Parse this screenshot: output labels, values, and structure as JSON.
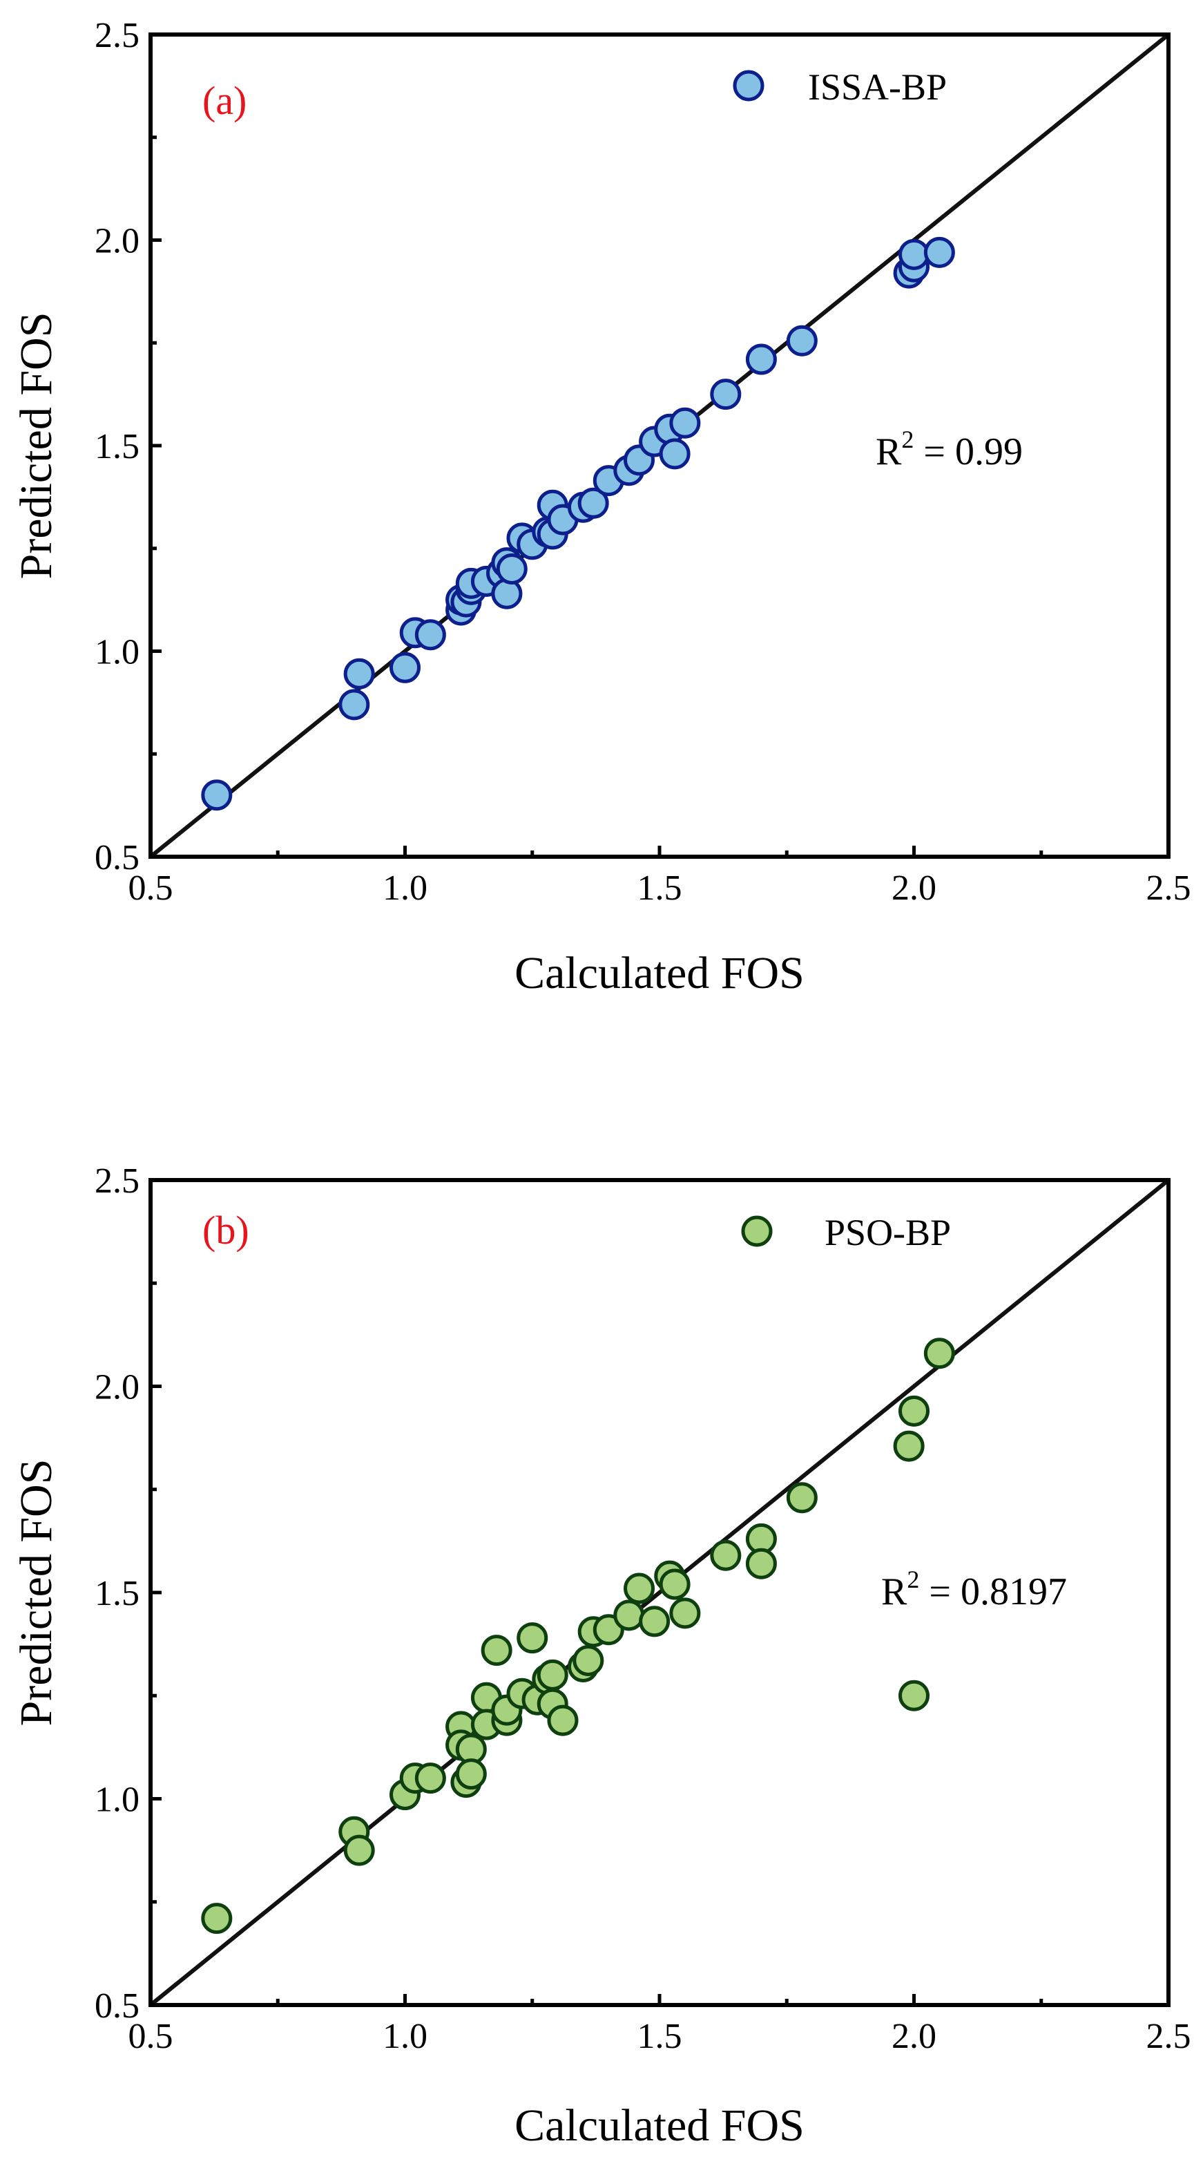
{
  "chart_data": [
    {
      "type": "scatter",
      "panel_label": "(a)",
      "xlabel": "Calculated FOS",
      "ylabel": "Predicted FOS",
      "xlim": [
        0.5,
        2.5
      ],
      "ylim": [
        0.5,
        2.5
      ],
      "xticks": [
        "0.5",
        "1.0",
        "1.5",
        "2.0",
        "2.5"
      ],
      "yticks": [
        "0.5",
        "1.0",
        "1.5",
        "2.0",
        "2.5"
      ],
      "legend": {
        "label": "ISSA-BP",
        "placement": "top-right"
      },
      "annotation": {
        "base": "R",
        "sup": "2",
        "rest": " = 0.99"
      },
      "reference_line": "y = x",
      "colors": {
        "fill": "#85c1e5",
        "edge": "#0c1f8c",
        "panel_label": "#e8141b"
      },
      "points": [
        [
          0.63,
          0.65
        ],
        [
          0.9,
          0.87
        ],
        [
          0.91,
          0.945
        ],
        [
          1.0,
          0.96
        ],
        [
          1.02,
          1.045
        ],
        [
          1.05,
          1.04
        ],
        [
          1.11,
          1.1
        ],
        [
          1.11,
          1.125
        ],
        [
          1.12,
          1.12
        ],
        [
          1.13,
          1.15
        ],
        [
          1.13,
          1.165
        ],
        [
          1.16,
          1.17
        ],
        [
          1.19,
          1.19
        ],
        [
          1.2,
          1.14
        ],
        [
          1.2,
          1.215
        ],
        [
          1.21,
          1.2
        ],
        [
          1.23,
          1.275
        ],
        [
          1.25,
          1.26
        ],
        [
          1.28,
          1.29
        ],
        [
          1.29,
          1.285
        ],
        [
          1.29,
          1.355
        ],
        [
          1.31,
          1.32
        ],
        [
          1.35,
          1.35
        ],
        [
          1.37,
          1.36
        ],
        [
          1.4,
          1.415
        ],
        [
          1.44,
          1.44
        ],
        [
          1.46,
          1.465
        ],
        [
          1.49,
          1.51
        ],
        [
          1.52,
          1.54
        ],
        [
          1.53,
          1.48
        ],
        [
          1.55,
          1.555
        ],
        [
          1.63,
          1.625
        ],
        [
          1.7,
          1.71
        ],
        [
          1.78,
          1.755
        ],
        [
          1.99,
          1.92
        ],
        [
          2.0,
          1.935
        ],
        [
          2.0,
          1.965
        ],
        [
          2.05,
          1.97
        ]
      ]
    },
    {
      "type": "scatter",
      "panel_label": "(b)",
      "xlabel": "Calculated FOS",
      "ylabel": "Predicted FOS",
      "xlim": [
        0.5,
        2.5
      ],
      "ylim": [
        0.5,
        2.5
      ],
      "xticks": [
        "0.5",
        "1.0",
        "1.5",
        "2.0",
        "2.5"
      ],
      "yticks": [
        "0.5",
        "1.0",
        "1.5",
        "2.0",
        "2.5"
      ],
      "legend": {
        "label": "PSO-BP",
        "placement": "top-right"
      },
      "annotation": {
        "base": "R",
        "sup": "2",
        "rest": " = 0.8197"
      },
      "reference_line": "y = x",
      "colors": {
        "fill": "#a6d17d",
        "edge": "#0e3f0e",
        "panel_label": "#e8141b"
      },
      "points": [
        [
          0.63,
          0.71
        ],
        [
          0.9,
          0.92
        ],
        [
          0.91,
          0.875
        ],
        [
          1.0,
          1.01
        ],
        [
          1.02,
          1.05
        ],
        [
          1.05,
          1.05
        ],
        [
          1.11,
          1.175
        ],
        [
          1.11,
          1.13
        ],
        [
          1.12,
          1.04
        ],
        [
          1.13,
          1.12
        ],
        [
          1.13,
          1.06
        ],
        [
          1.16,
          1.245
        ],
        [
          1.16,
          1.18
        ],
        [
          1.18,
          1.36
        ],
        [
          1.2,
          1.19
        ],
        [
          1.2,
          1.215
        ],
        [
          1.23,
          1.255
        ],
        [
          1.25,
          1.39
        ],
        [
          1.26,
          1.24
        ],
        [
          1.28,
          1.29
        ],
        [
          1.29,
          1.23
        ],
        [
          1.29,
          1.3
        ],
        [
          1.31,
          1.19
        ],
        [
          1.35,
          1.32
        ],
        [
          1.36,
          1.335
        ],
        [
          1.37,
          1.405
        ],
        [
          1.4,
          1.41
        ],
        [
          1.44,
          1.445
        ],
        [
          1.46,
          1.51
        ],
        [
          1.49,
          1.43
        ],
        [
          1.52,
          1.54
        ],
        [
          1.53,
          1.52
        ],
        [
          1.55,
          1.45
        ],
        [
          1.63,
          1.59
        ],
        [
          1.7,
          1.63
        ],
        [
          1.7,
          1.57
        ],
        [
          1.78,
          1.73
        ],
        [
          1.99,
          1.855
        ],
        [
          2.0,
          1.94
        ],
        [
          2.0,
          1.25
        ],
        [
          2.05,
          2.08
        ]
      ]
    }
  ]
}
